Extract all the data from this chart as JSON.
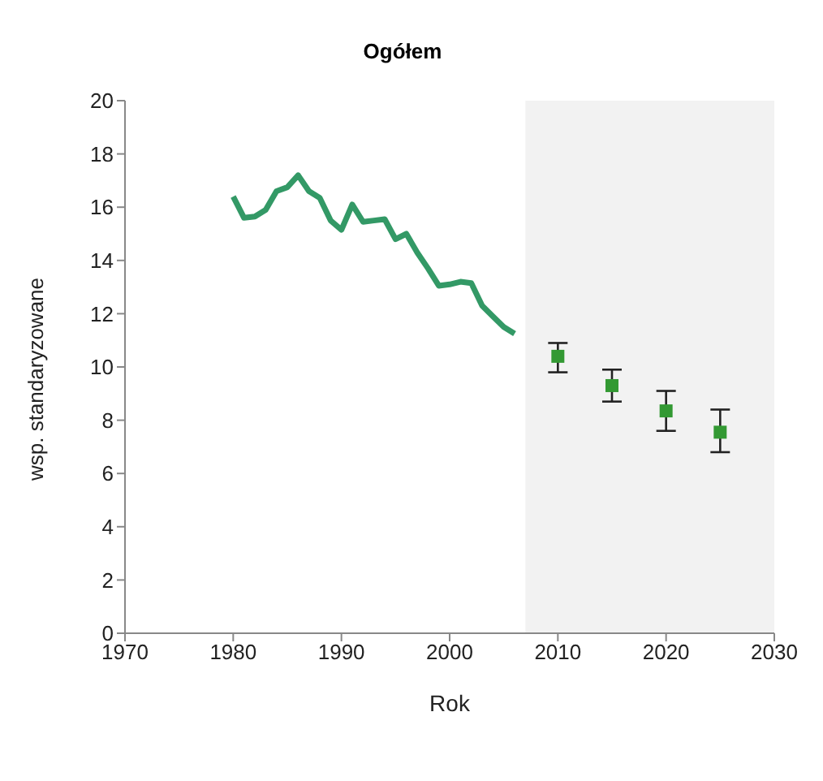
{
  "chart_data": {
    "type": "line",
    "title": "Ogółem",
    "xlabel": "Rok",
    "ylabel": "wsp. standaryzowane",
    "xlim": [
      1970,
      2030
    ],
    "xticks": [
      1970,
      1980,
      1990,
      2000,
      2010,
      2020,
      2030
    ],
    "ylim": [
      0,
      20
    ],
    "yticks": [
      0,
      2,
      4,
      6,
      8,
      10,
      12,
      14,
      16,
      18,
      20
    ],
    "grid": false,
    "legend": false,
    "bands": [
      {
        "axis": "x",
        "from": 2007,
        "to": 2030,
        "color": "#f2f2f2"
      }
    ],
    "series": [
      {
        "color": "#339966",
        "marker": "none",
        "line_style": "solid",
        "x": [
          1980,
          1981,
          1982,
          1983,
          1984,
          1985,
          1986,
          1987,
          1988,
          1989,
          1990,
          1991,
          1992,
          1993,
          1994,
          1995,
          1996,
          1997,
          1998,
          1999,
          2000,
          2001,
          2002,
          2003,
          2004,
          2005,
          2006
        ],
        "values": [
          16.4,
          15.6,
          15.65,
          15.9,
          16.6,
          16.75,
          17.2,
          16.6,
          16.35,
          15.5,
          15.15,
          16.1,
          15.45,
          15.5,
          15.55,
          14.8,
          15.0,
          14.3,
          13.7,
          13.05,
          13.1,
          13.2,
          13.15,
          12.3,
          11.9,
          11.5,
          11.25
        ]
      },
      {
        "type": "scatter",
        "color": "#339933",
        "marker": "square",
        "x": [
          2010,
          2015,
          2020,
          2025
        ],
        "values": [
          10.4,
          9.3,
          8.35,
          7.55
        ],
        "errors": [
          [
            9.8,
            10.9
          ],
          [
            8.7,
            9.9
          ],
          [
            7.6,
            9.1
          ],
          [
            6.8,
            8.4
          ]
        ]
      }
    ]
  }
}
